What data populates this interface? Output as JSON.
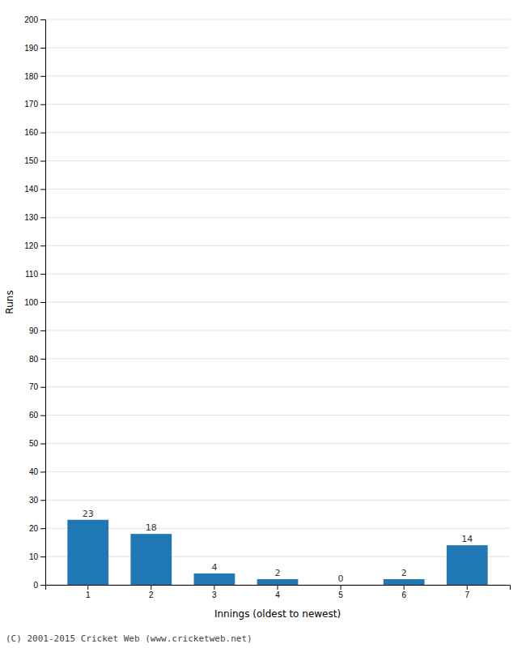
{
  "chart_data": {
    "type": "bar",
    "categories": [
      "1",
      "2",
      "3",
      "4",
      "5",
      "6",
      "7"
    ],
    "values": [
      23,
      18,
      4,
      2,
      0,
      2,
      14
    ],
    "xlabel": "Innings (oldest to newest)",
    "ylabel": "Runs",
    "ylim": [
      0,
      200
    ],
    "yticks": [
      0,
      10,
      20,
      30,
      40,
      50,
      60,
      70,
      80,
      90,
      100,
      110,
      120,
      130,
      140,
      150,
      160,
      170,
      180,
      190,
      200
    ],
    "grid": true,
    "data_labels": true,
    "footer": "(C) 2001-2015 Cricket Web (www.cricketweb.net)"
  }
}
